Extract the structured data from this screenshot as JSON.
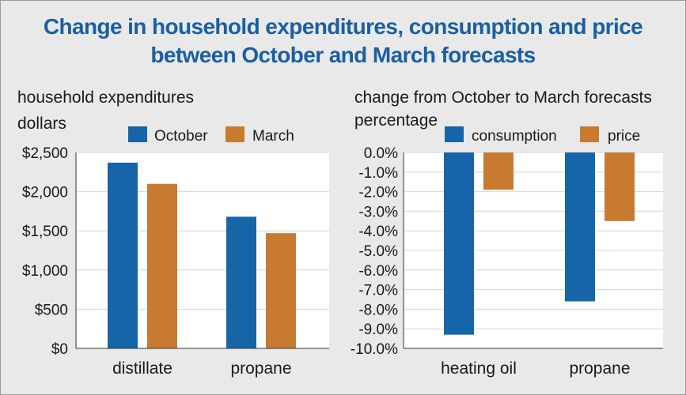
{
  "title_line1": "Change in household expenditures, consumption and price",
  "title_line2": "between October and March forecasts",
  "colors": {
    "title": "#1a5fa3",
    "series1": "#1565a8",
    "series2": "#c77a30",
    "plot_bg": "#ffffff",
    "grid": "#d4d4d4",
    "axis": "#333333"
  },
  "chart_data": [
    {
      "type": "bar",
      "title": "household expenditures",
      "ylabel": "dollars",
      "xlabel": "",
      "categories": [
        "distillate",
        "propane"
      ],
      "series": [
        {
          "name": "October",
          "values": [
            2370,
            1680
          ]
        },
        {
          "name": "March",
          "values": [
            2100,
            1470
          ]
        }
      ],
      "ylim": [
        0,
        2500
      ],
      "yticks": [
        0,
        500,
        1000,
        1500,
        2000,
        2500
      ],
      "ytick_labels": [
        "$0",
        "$500",
        "$1,000",
        "$1,500",
        "$2,000",
        "$2,500"
      ],
      "grid": true,
      "legend": "top"
    },
    {
      "type": "bar",
      "title": "change from October to March forecasts",
      "ylabel": "percentage",
      "xlabel": "",
      "categories": [
        "heating oil",
        "propane"
      ],
      "series": [
        {
          "name": "consumption",
          "values": [
            -9.3,
            -7.6
          ]
        },
        {
          "name": "price",
          "values": [
            -1.9,
            -3.5
          ]
        }
      ],
      "ylim": [
        -10,
        0
      ],
      "yticks": [
        0,
        -1,
        -2,
        -3,
        -4,
        -5,
        -6,
        -7,
        -8,
        -9,
        -10
      ],
      "ytick_labels": [
        "0.0%",
        "-1.0%",
        "-2.0%",
        "-3.0%",
        "-4.0%",
        "-5.0%",
        "-6.0%",
        "-7.0%",
        "-8.0%",
        "-9.0%",
        "-10.0%"
      ],
      "grid": true,
      "legend": "top"
    }
  ]
}
